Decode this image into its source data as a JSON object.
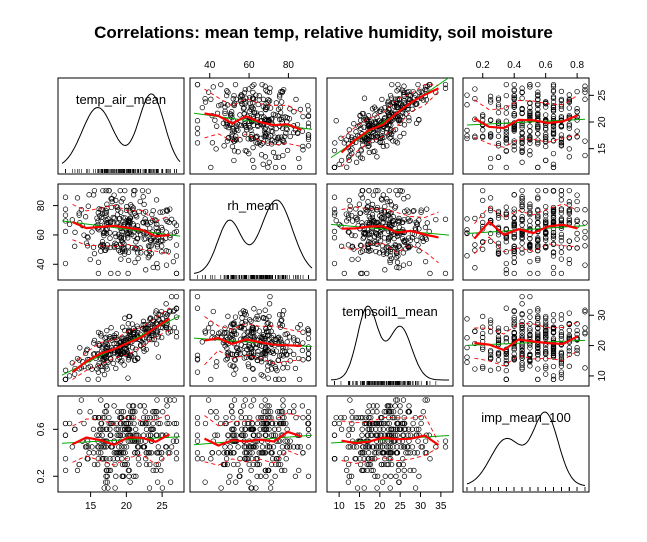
{
  "chart_data": {
    "type": "scatter",
    "title": "Correlations: mean temp, relative humidity, soil moisture",
    "variables": [
      {
        "name": "temp_air_mean",
        "range": [
          11,
          27.5
        ],
        "ticks": [
          15,
          20,
          25
        ],
        "center": 20,
        "spread": 3.8,
        "mix": [
          [
            16,
            2.2,
            0.5
          ],
          [
            23.5,
            1.8,
            0.5
          ]
        ]
      },
      {
        "name": "rh_mean",
        "range": [
          32,
          92
        ],
        "ticks": [
          40,
          60,
          80
        ],
        "center": 64,
        "spread": 13,
        "mix": [
          [
            50,
            6,
            0.35
          ],
          [
            74,
            8,
            0.65
          ]
        ]
      },
      {
        "name": "tempsoil1_mean",
        "range": [
          8,
          37
        ],
        "ticks": [
          10,
          15,
          20,
          25,
          30,
          35
        ],
        "tick_labels_right": [
          10,
          20,
          30
        ],
        "center": 21,
        "spread": 5.5,
        "mix": [
          [
            17,
            2.5,
            0.55
          ],
          [
            25,
            2.8,
            0.45
          ]
        ]
      },
      {
        "name": "imp_mean_100",
        "range": [
          0.1,
          0.85
        ],
        "ticks": [
          0.2,
          0.4,
          0.6,
          0.8
        ],
        "tick_labels_left": [
          0.2,
          0.6
        ],
        "center": 0.5,
        "spread": 0.17,
        "mix": [
          [
            0.35,
            0.1,
            0.45
          ],
          [
            0.6,
            0.08,
            0.55
          ]
        ]
      }
    ],
    "relationships": {
      "temp_air_mean|rh_mean": -0.28,
      "temp_air_mean|tempsoil1_mean": 0.78,
      "temp_air_mean|imp_mean_100": 0.0,
      "rh_mean|tempsoil1_mean": -0.25,
      "rh_mean|imp_mean_100": 0.1,
      "tempsoil1_mean|imp_mean_100": -0.03
    },
    "n_points": 300,
    "smoother_color": "#ff0000",
    "linear_fit_color": "#00aa00",
    "point_color": "#000000",
    "layout": "scatterplot matrix, density on diagonal with rug"
  }
}
